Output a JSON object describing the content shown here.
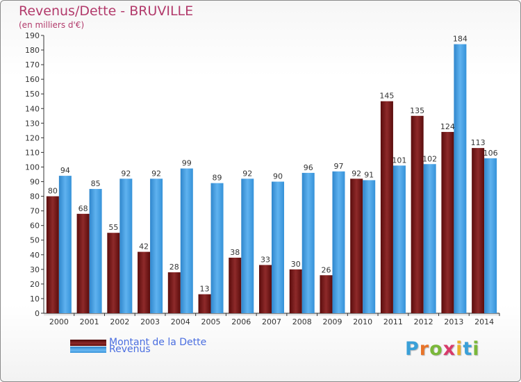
{
  "title": "Revenus/Dette - BRUVILLE",
  "subtitle": "(en milliers d'€)",
  "legend": {
    "items": [
      {
        "label": "Montant de la Dette",
        "color": "#7a1a1a"
      },
      {
        "label": "Revenus",
        "color": "#3a9ae0"
      }
    ]
  },
  "logo": {
    "text": "Proxiti"
  },
  "colors": {
    "dette": "#6e1212",
    "revenus": "#3a9ae0",
    "title": "#b23a6b",
    "legend_text": "#4a6ee0"
  },
  "chart_data": {
    "type": "bar",
    "title": "Revenus/Dette - BRUVILLE",
    "ylabel": "(en milliers d'€)",
    "xlabel": "",
    "ylim": [
      0,
      190
    ],
    "ytick_step": 10,
    "grid": false,
    "categories": [
      "2000",
      "2001",
      "2002",
      "2003",
      "2004",
      "2005",
      "2006",
      "2007",
      "2008",
      "2009",
      "2010",
      "2011",
      "2012",
      "2013",
      "2014"
    ],
    "series": [
      {
        "name": "Montant de la Dette",
        "values": [
          80,
          68,
          55,
          42,
          28,
          13,
          38,
          33,
          30,
          26,
          92,
          145,
          135,
          124,
          113
        ]
      },
      {
        "name": "Revenus",
        "values": [
          94,
          85,
          92,
          92,
          99,
          89,
          92,
          90,
          96,
          97,
          91,
          101,
          102,
          184,
          106
        ]
      }
    ]
  }
}
